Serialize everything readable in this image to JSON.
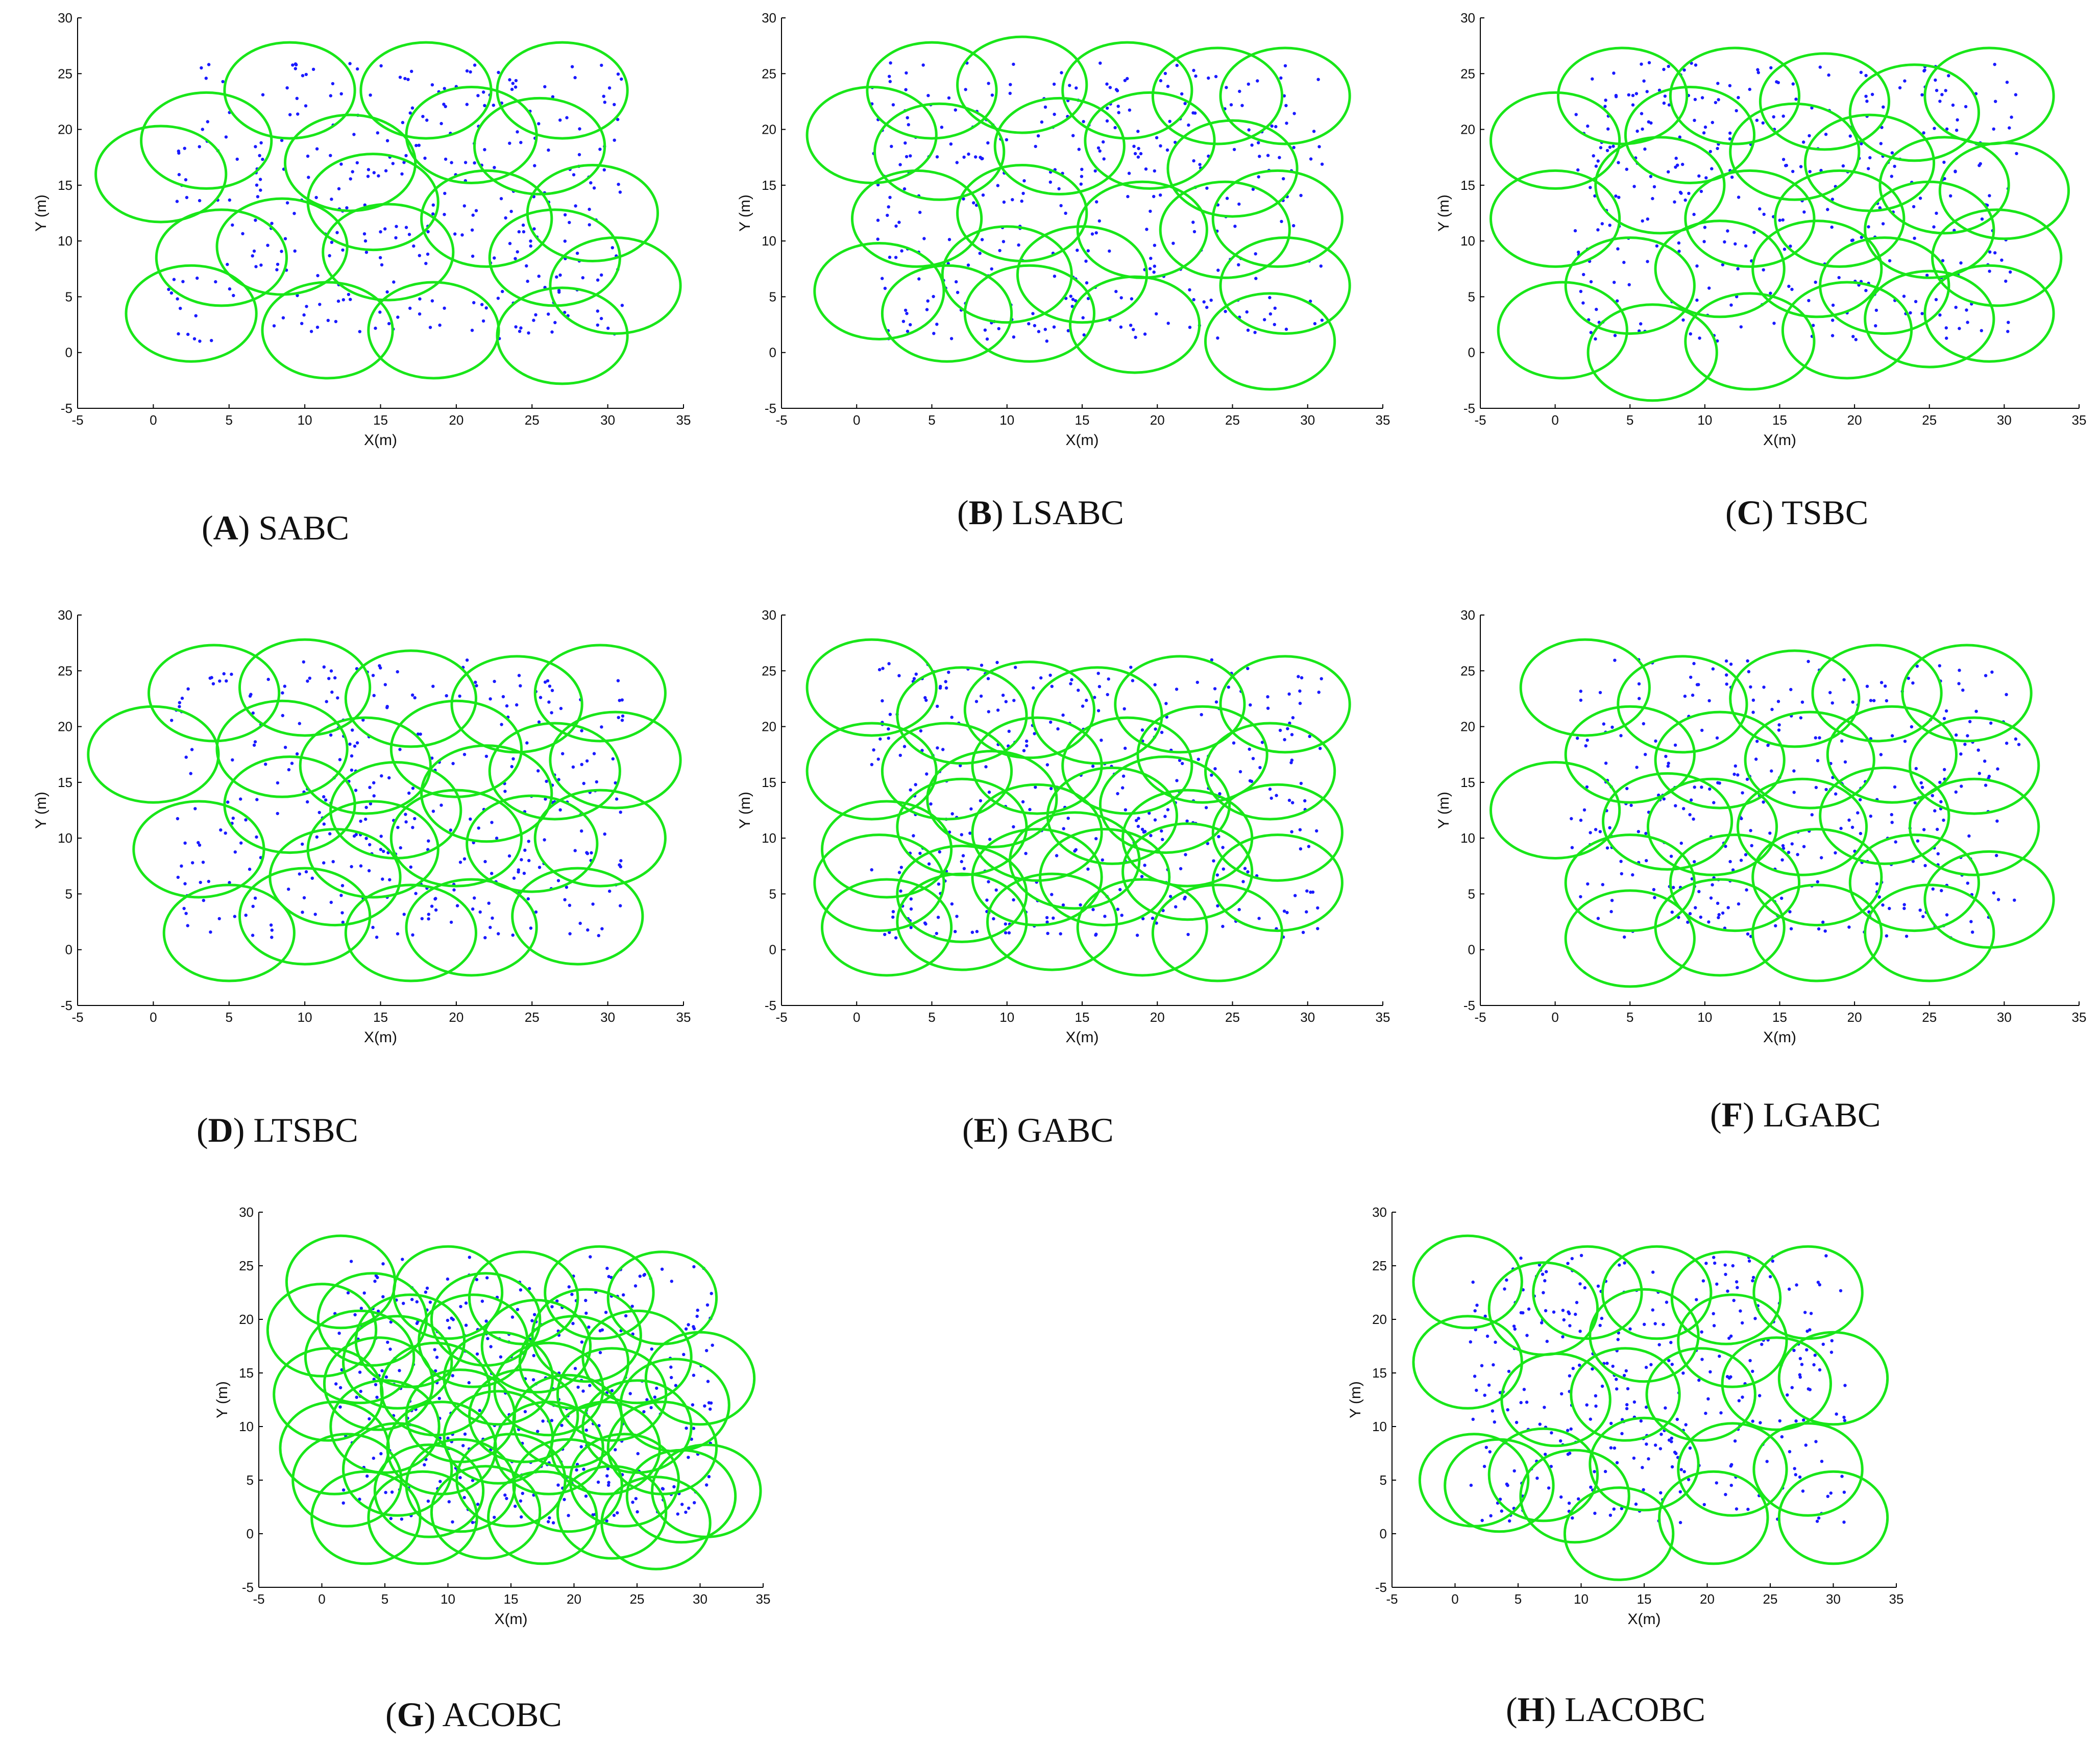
{
  "chart_data": [
    {
      "type": "scatter",
      "id": "A",
      "caption_letter": "A",
      "caption_text": "SABC",
      "xlabel": "X(m)",
      "ylabel": "Y (m)",
      "xlim": [
        -5,
        35
      ],
      "ylim": [
        -5,
        30
      ],
      "xticks": [
        "-5",
        "0",
        "5",
        "10",
        "15",
        "20",
        "25",
        "30",
        "35"
      ],
      "yticks": [
        "-5",
        "0",
        "5",
        "10",
        "15",
        "20",
        "25",
        "30"
      ],
      "circle_radius_m": 4.3,
      "circles": [
        [
          9,
          23.5
        ],
        [
          18,
          23.5
        ],
        [
          27,
          23.5
        ],
        [
          3.5,
          19
        ],
        [
          13,
          17
        ],
        [
          21,
          19.5
        ],
        [
          25.5,
          18.5
        ],
        [
          0.5,
          16
        ],
        [
          29,
          12.5
        ],
        [
          14.5,
          13.5
        ],
        [
          4.5,
          8.5
        ],
        [
          8.5,
          9.5
        ],
        [
          15.5,
          9
        ],
        [
          26.5,
          8.5
        ],
        [
          30.5,
          6
        ],
        [
          2.5,
          3.5
        ],
        [
          11.5,
          2
        ],
        [
          18.5,
          2
        ],
        [
          27,
          1.5
        ],
        [
          22,
          12
        ]
      ],
      "seed": 11
    },
    {
      "type": "scatter",
      "id": "B",
      "caption_letter": "B",
      "caption_text": "LSABC",
      "xlabel": "X(m)",
      "ylabel": "Y (m)",
      "xlim": [
        -5,
        35
      ],
      "ylim": [
        -5,
        30
      ],
      "xticks": [
        "-5",
        "0",
        "5",
        "10",
        "15",
        "20",
        "25",
        "30",
        "35"
      ],
      "yticks": [
        "-5",
        "0",
        "5",
        "10",
        "15",
        "20",
        "25",
        "30"
      ],
      "circle_radius_m": 4.3,
      "circles": [
        [
          5,
          23.5
        ],
        [
          11,
          24
        ],
        [
          18,
          23.5
        ],
        [
          24,
          23
        ],
        [
          28.5,
          23
        ],
        [
          1,
          19.5
        ],
        [
          5.5,
          18
        ],
        [
          13.5,
          18.5
        ],
        [
          19.5,
          19
        ],
        [
          25,
          16.5
        ],
        [
          28,
          12
        ],
        [
          4,
          12
        ],
        [
          11,
          12.5
        ],
        [
          19,
          11
        ],
        [
          24.5,
          11
        ],
        [
          28.5,
          6
        ],
        [
          1.5,
          5.5
        ],
        [
          6,
          3.5
        ],
        [
          11.5,
          3.5
        ],
        [
          18.5,
          2.5
        ],
        [
          27.5,
          1
        ],
        [
          10,
          7
        ],
        [
          15,
          7
        ]
      ],
      "seed": 23
    },
    {
      "type": "scatter",
      "id": "C",
      "caption_letter": "C",
      "caption_text": "TSBC",
      "xlabel": "X(m)",
      "ylabel": "Y (m)",
      "xlim": [
        -5,
        35
      ],
      "ylim": [
        -5,
        30
      ],
      "xticks": [
        "-5",
        "0",
        "5",
        "10",
        "15",
        "20",
        "25",
        "30",
        "35"
      ],
      "yticks": [
        "-5",
        "0",
        "5",
        "10",
        "15",
        "20",
        "25",
        "30"
      ],
      "circle_radius_m": 4.3,
      "circles": [
        [
          4.5,
          23
        ],
        [
          12,
          23
        ],
        [
          18,
          22.5
        ],
        [
          24,
          21.5
        ],
        [
          29,
          23
        ],
        [
          0,
          19
        ],
        [
          9,
          19.5
        ],
        [
          16,
          18
        ],
        [
          21,
          17
        ],
        [
          26,
          15
        ],
        [
          30,
          14.5
        ],
        [
          0,
          12
        ],
        [
          7,
          15
        ],
        [
          13,
          12
        ],
        [
          19,
          12
        ],
        [
          25,
          11
        ],
        [
          29.5,
          8.5
        ],
        [
          5,
          6
        ],
        [
          11,
          7.5
        ],
        [
          17.5,
          7.5
        ],
        [
          22,
          6
        ],
        [
          0.5,
          2
        ],
        [
          6.5,
          0
        ],
        [
          13,
          1
        ],
        [
          19.5,
          2
        ],
        [
          25,
          3
        ],
        [
          29,
          3.5
        ]
      ],
      "seed": 37
    },
    {
      "type": "scatter",
      "id": "D",
      "caption_letter": "D",
      "caption_text": "LTSBC",
      "xlabel": "X(m)",
      "ylabel": "Y (m)",
      "xlim": [
        -5,
        35
      ],
      "ylim": [
        -5,
        30
      ],
      "xticks": [
        "-5",
        "0",
        "5",
        "10",
        "15",
        "20",
        "25",
        "30",
        "35"
      ],
      "yticks": [
        "-5",
        "0",
        "5",
        "10",
        "15",
        "20",
        "25",
        "30"
      ],
      "circle_radius_m": 4.3,
      "circles": [
        [
          4,
          23
        ],
        [
          10,
          23.5
        ],
        [
          17,
          22.5
        ],
        [
          24,
          22
        ],
        [
          29.5,
          23
        ],
        [
          0,
          17.5
        ],
        [
          8.5,
          18
        ],
        [
          14,
          16.5
        ],
        [
          20,
          18
        ],
        [
          26.5,
          16
        ],
        [
          30.5,
          17
        ],
        [
          9,
          13
        ],
        [
          16,
          12.5
        ],
        [
          22,
          14
        ],
        [
          29.5,
          10
        ],
        [
          3,
          9
        ],
        [
          14.5,
          9
        ],
        [
          20,
          10
        ],
        [
          25,
          9.5
        ],
        [
          5,
          1.5
        ],
        [
          10,
          3
        ],
        [
          17,
          1.5
        ],
        [
          21,
          2
        ],
        [
          28,
          3
        ],
        [
          12,
          6.5
        ]
      ],
      "seed": 51
    },
    {
      "type": "scatter",
      "id": "E",
      "caption_letter": "E",
      "caption_text": "GABC",
      "xlabel": "X(m)",
      "ylabel": "Y (m)",
      "xlim": [
        -5,
        35
      ],
      "ylim": [
        -5,
        30
      ],
      "xticks": [
        "-5",
        "0",
        "5",
        "10",
        "15",
        "20",
        "25",
        "30",
        "35"
      ],
      "yticks": [
        "-5",
        "0",
        "5",
        "10",
        "15",
        "20",
        "25",
        "30"
      ],
      "circle_radius_m": 4.3,
      "circles": [
        [
          1,
          23.5
        ],
        [
          7,
          21
        ],
        [
          11.5,
          21.5
        ],
        [
          16,
          21
        ],
        [
          21.5,
          22
        ],
        [
          28.5,
          22
        ],
        [
          1,
          16
        ],
        [
          6,
          16
        ],
        [
          12,
          16.5
        ],
        [
          18,
          16.5
        ],
        [
          23,
          17.5
        ],
        [
          27.5,
          16
        ],
        [
          2,
          9
        ],
        [
          7,
          11
        ],
        [
          12,
          10.5
        ],
        [
          17,
          12
        ],
        [
          22,
          10
        ],
        [
          28,
          10.5
        ],
        [
          1.5,
          6
        ],
        [
          7,
          5
        ],
        [
          12,
          6.5
        ],
        [
          16.5,
          6.5
        ],
        [
          22,
          7
        ],
        [
          28,
          6
        ],
        [
          2,
          2
        ],
        [
          7,
          2.5
        ],
        [
          13,
          2.5
        ],
        [
          19,
          2
        ],
        [
          24,
          1.5
        ],
        [
          20.5,
          13
        ],
        [
          9,
          13.5
        ],
        [
          14.5,
          8
        ]
      ],
      "seed": 67
    },
    {
      "type": "scatter",
      "id": "F",
      "caption_letter": "F",
      "caption_text": "LGABC",
      "xlabel": "X(m)",
      "ylabel": "Y (m)",
      "xlim": [
        -5,
        35
      ],
      "ylim": [
        -5,
        30
      ],
      "xticks": [
        "-5",
        "0",
        "5",
        "10",
        "15",
        "20",
        "25",
        "30",
        "35"
      ],
      "yticks": [
        "-5",
        "0",
        "5",
        "10",
        "15",
        "20",
        "25",
        "30"
      ],
      "circle_radius_m": 4.3,
      "circles": [
        [
          2,
          23.5
        ],
        [
          8.5,
          22
        ],
        [
          16,
          22.5
        ],
        [
          21.5,
          23
        ],
        [
          27.5,
          23
        ],
        [
          5,
          17.5
        ],
        [
          11,
          17
        ],
        [
          17,
          17
        ],
        [
          22.5,
          17.5
        ],
        [
          28,
          16.5
        ],
        [
          0,
          12.5
        ],
        [
          10.5,
          11
        ],
        [
          16.5,
          11
        ],
        [
          22,
          12
        ],
        [
          28,
          11
        ],
        [
          5,
          6
        ],
        [
          12,
          6
        ],
        [
          17.5,
          6.5
        ],
        [
          24,
          6
        ],
        [
          29,
          4.5
        ],
        [
          5,
          1
        ],
        [
          11,
          2
        ],
        [
          17.5,
          1.5
        ],
        [
          25,
          1.5
        ],
        [
          7.5,
          11.5
        ]
      ],
      "seed": 79
    },
    {
      "type": "scatter",
      "id": "G",
      "caption_letter": "G",
      "caption_text": "ACOBC",
      "xlabel": "X(m)",
      "ylabel": "Y (m)",
      "xlim": [
        -5,
        35
      ],
      "ylim": [
        -5,
        30
      ],
      "xticks": [
        "-5",
        "0",
        "5",
        "10",
        "15",
        "20",
        "25",
        "30",
        "35"
      ],
      "yticks": [
        "-5",
        "0",
        "5",
        "10",
        "15",
        "20",
        "25",
        "30"
      ],
      "circle_radius_m": 4.3,
      "circles": [
        [
          1.5,
          23.5
        ],
        [
          10,
          22.5
        ],
        [
          16,
          22
        ],
        [
          22,
          22.5
        ],
        [
          27,
          22
        ],
        [
          0,
          19
        ],
        [
          4,
          20
        ],
        [
          7,
          18
        ],
        [
          12,
          18
        ],
        [
          17,
          17.5
        ],
        [
          21,
          18.5
        ],
        [
          25,
          16.5
        ],
        [
          30,
          14.5
        ],
        [
          0.5,
          13
        ],
        [
          4.5,
          14
        ],
        [
          9,
          13.5
        ],
        [
          14,
          14.5
        ],
        [
          18,
          13.5
        ],
        [
          23,
          13
        ],
        [
          28,
          12
        ],
        [
          1,
          8
        ],
        [
          5,
          10
        ],
        [
          9.5,
          8
        ],
        [
          14,
          9
        ],
        [
          18,
          8
        ],
        [
          22.5,
          8
        ],
        [
          27,
          8
        ],
        [
          30.5,
          4
        ],
        [
          2,
          5
        ],
        [
          6,
          6
        ],
        [
          11,
          4.5
        ],
        [
          15,
          5
        ],
        [
          19.5,
          4.5
        ],
        [
          24,
          5
        ],
        [
          28.5,
          3.5
        ],
        [
          3.5,
          1.5
        ],
        [
          8,
          1.5
        ],
        [
          13,
          2
        ],
        [
          17.5,
          1.5
        ],
        [
          23,
          2
        ],
        [
          26.5,
          1
        ],
        [
          6,
          16
        ],
        [
          11,
          11
        ],
        [
          16,
          11
        ],
        [
          20,
          16
        ],
        [
          3,
          16.5
        ],
        [
          25,
          10
        ],
        [
          8.5,
          4
        ],
        [
          19.5,
          10.5
        ],
        [
          13,
          20
        ]
      ],
      "seed": 93
    },
    {
      "type": "scatter",
      "id": "H",
      "caption_letter": "H",
      "caption_text": "LACOBC",
      "xlabel": "X(m)",
      "ylabel": "Y (m)",
      "xlim": [
        -5,
        35
      ],
      "ylim": [
        -5,
        30
      ],
      "xticks": [
        "-5",
        "0",
        "5",
        "10",
        "15",
        "20",
        "25",
        "30",
        "35"
      ],
      "yticks": [
        "-5",
        "0",
        "5",
        "10",
        "15",
        "20",
        "25",
        "30"
      ],
      "circle_radius_m": 4.3,
      "circles": [
        [
          1,
          23.5
        ],
        [
          7,
          21
        ],
        [
          10.5,
          22.5
        ],
        [
          16,
          22.5
        ],
        [
          21.5,
          22
        ],
        [
          28,
          22.5
        ],
        [
          1,
          16
        ],
        [
          15,
          18.5
        ],
        [
          22,
          18
        ],
        [
          8,
          12.5
        ],
        [
          13.5,
          13
        ],
        [
          19.5,
          13
        ],
        [
          25.5,
          14
        ],
        [
          30,
          14.5
        ],
        [
          1.5,
          5
        ],
        [
          7,
          5.5
        ],
        [
          15,
          6.5
        ],
        [
          22,
          6
        ],
        [
          28,
          6
        ],
        [
          3.5,
          4.5
        ],
        [
          13,
          0
        ],
        [
          20.5,
          1.5
        ],
        [
          30,
          1.5
        ],
        [
          9.5,
          3.5
        ]
      ],
      "seed": 101
    }
  ]
}
